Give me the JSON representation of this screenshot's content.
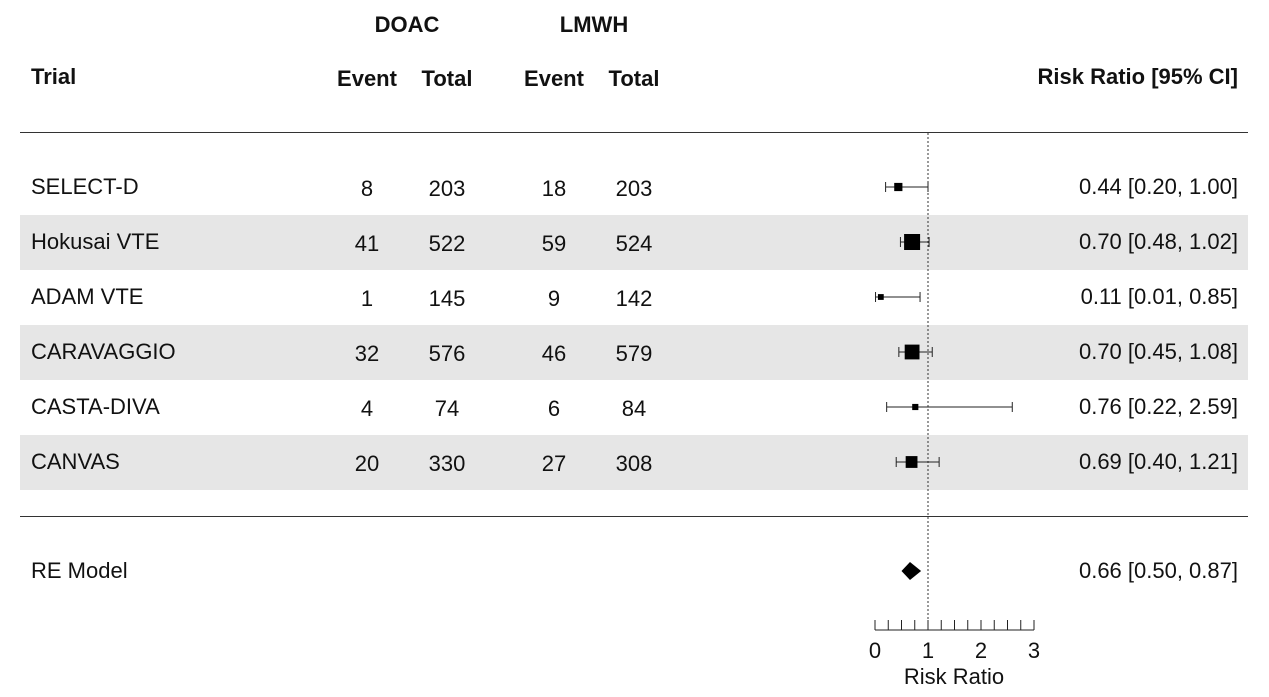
{
  "header": {
    "group1": "DOAC",
    "group2": "LMWH",
    "trial": "Trial",
    "event1": "Event",
    "total1": "Total",
    "event2": "Event",
    "total2": "Total",
    "ci": "Risk Ratio [95% CI]"
  },
  "rows": [
    {
      "trial": "SELECT-D",
      "doac_event": "8",
      "doac_total": "203",
      "lmwh_event": "18",
      "lmwh_total": "203",
      "ci_text": "0.44 [0.20, 1.00]"
    },
    {
      "trial": "Hokusai VTE",
      "doac_event": "41",
      "doac_total": "522",
      "lmwh_event": "59",
      "lmwh_total": "524",
      "ci_text": "0.70 [0.48, 1.02]"
    },
    {
      "trial": "ADAM VTE",
      "doac_event": "1",
      "doac_total": "145",
      "lmwh_event": "9",
      "lmwh_total": "142",
      "ci_text": "0.11 [0.01, 0.85]"
    },
    {
      "trial": "CARAVAGGIO",
      "doac_event": "32",
      "doac_total": "576",
      "lmwh_event": "46",
      "lmwh_total": "579",
      "ci_text": "0.70 [0.45, 1.08]"
    },
    {
      "trial": "CASTA-DIVA",
      "doac_event": "4",
      "doac_total": "74",
      "lmwh_event": "6",
      "lmwh_total": "84",
      "ci_text": "0.76 [0.22, 2.59]"
    },
    {
      "trial": "CANVAS",
      "doac_event": "20",
      "doac_total": "330",
      "lmwh_event": "27",
      "lmwh_total": "308",
      "ci_text": "0.69 [0.40, 1.21]"
    }
  ],
  "summary": {
    "label": "RE Model",
    "ci_text": "0.66 [0.50, 0.87]"
  },
  "axis": {
    "label": "Risk Ratio"
  },
  "chart_data": {
    "type": "forest",
    "xlabel": "Risk Ratio",
    "xlim": [
      0,
      3
    ],
    "major_ticks": [
      0,
      1,
      2,
      3
    ],
    "minor_tick_step": 0.25,
    "reference_line": 1,
    "studies": [
      {
        "name": "SELECT-D",
        "est": 0.44,
        "lo": 0.2,
        "hi": 1.0,
        "weight": 0.35
      },
      {
        "name": "Hokusai VTE",
        "est": 0.7,
        "lo": 0.48,
        "hi": 1.02,
        "weight": 1.0
      },
      {
        "name": "ADAM VTE",
        "est": 0.11,
        "lo": 0.01,
        "hi": 0.85,
        "weight": 0.15
      },
      {
        "name": "CARAVAGGIO",
        "est": 0.7,
        "lo": 0.45,
        "hi": 1.08,
        "weight": 0.9
      },
      {
        "name": "CASTA-DIVA",
        "est": 0.76,
        "lo": 0.22,
        "hi": 2.59,
        "weight": 0.18
      },
      {
        "name": "CANVAS",
        "est": 0.69,
        "lo": 0.4,
        "hi": 1.21,
        "weight": 0.65
      }
    ],
    "summary": {
      "name": "RE Model",
      "est": 0.66,
      "lo": 0.5,
      "hi": 0.87
    }
  }
}
